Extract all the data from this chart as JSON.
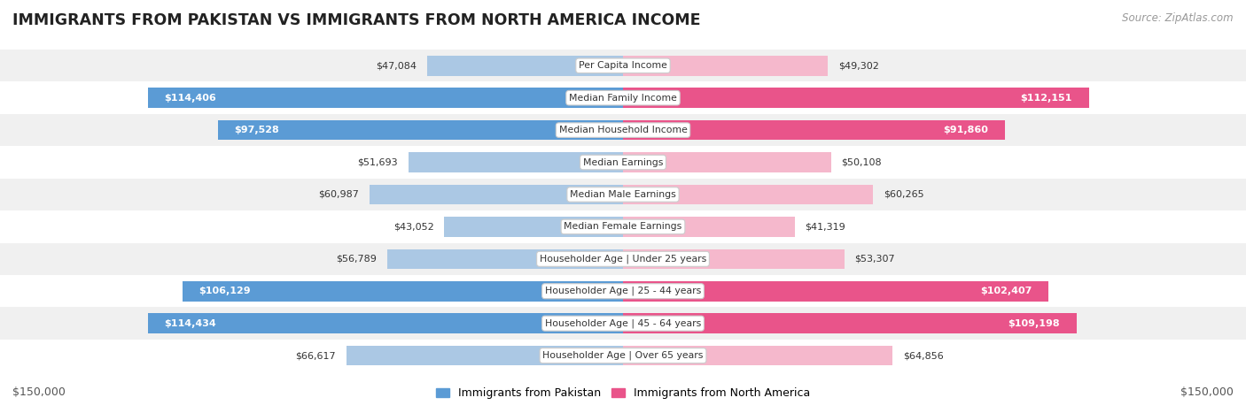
{
  "title": "IMMIGRANTS FROM PAKISTAN VS IMMIGRANTS FROM NORTH AMERICA INCOME",
  "source": "Source: ZipAtlas.com",
  "categories": [
    "Per Capita Income",
    "Median Family Income",
    "Median Household Income",
    "Median Earnings",
    "Median Male Earnings",
    "Median Female Earnings",
    "Householder Age | Under 25 years",
    "Householder Age | 25 - 44 years",
    "Householder Age | 45 - 64 years",
    "Householder Age | Over 65 years"
  ],
  "pakistan_values": [
    47084,
    114406,
    97528,
    51693,
    60987,
    43052,
    56789,
    106129,
    114434,
    66617
  ],
  "north_america_values": [
    49302,
    112151,
    91860,
    50108,
    60265,
    41319,
    53307,
    102407,
    109198,
    64856
  ],
  "pakistan_labels": [
    "$47,084",
    "$114,406",
    "$97,528",
    "$51,693",
    "$60,987",
    "$43,052",
    "$56,789",
    "$106,129",
    "$114,434",
    "$66,617"
  ],
  "north_america_labels": [
    "$49,302",
    "$112,151",
    "$91,860",
    "$50,108",
    "$60,265",
    "$41,319",
    "$53,307",
    "$102,407",
    "$109,198",
    "$64,856"
  ],
  "pakistan_color_light": "#abc8e4",
  "pakistan_color_strong": "#5b9bd5",
  "north_america_color_light": "#f5b8cc",
  "north_america_color_strong": "#e9548a",
  "pakistan_text_threshold": 75000,
  "north_america_text_threshold": 75000,
  "max_value": 150000,
  "row_bg_even": "#f0f0f0",
  "row_bg_odd": "#ffffff",
  "legend_pakistan": "Immigrants from Pakistan",
  "legend_north_america": "Immigrants from North America",
  "xlabel_left": "$150,000",
  "xlabel_right": "$150,000"
}
